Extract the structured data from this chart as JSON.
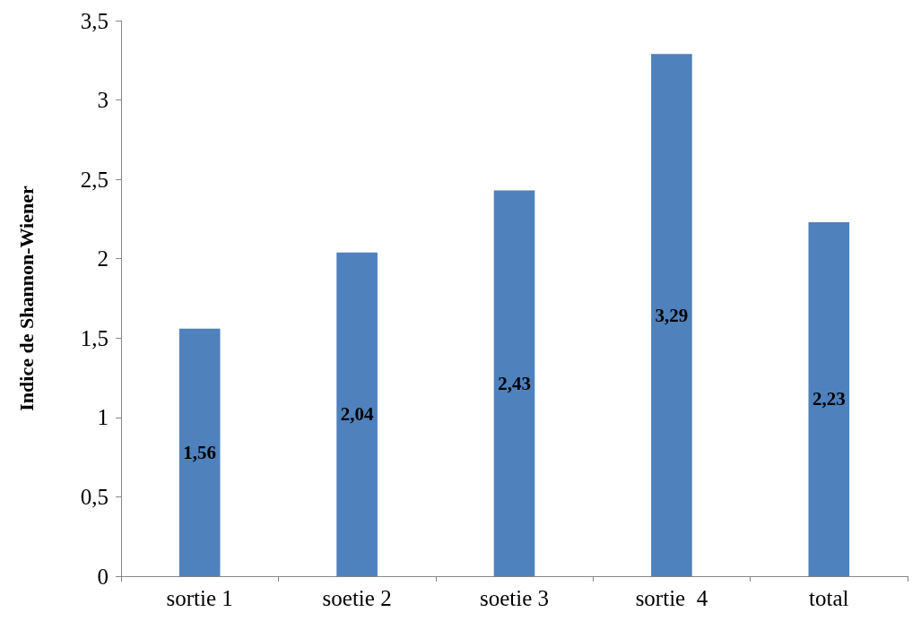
{
  "chart_data": {
    "type": "bar",
    "ylabel": "Indice de Shannon-Wiener",
    "categories": [
      "sortie 1",
      "soetie 2",
      "soetie 3",
      "sortie  4",
      "total"
    ],
    "values": [
      1.56,
      2.04,
      2.43,
      3.29,
      2.23
    ],
    "color": "#4f81bd",
    "value_labels": [
      "1,56",
      "2,04",
      "2,43",
      "3,29",
      "2,23"
    ],
    "ylim": [
      0,
      3.5
    ],
    "yticks": [
      0,
      {
        "value": 0.5,
        "label": "0,5"
      },
      1,
      {
        "value": 1.5,
        "label": "1,5"
      },
      2,
      {
        "value": 2.5,
        "label": "2,5"
      },
      3,
      {
        "value": 3.5,
        "label": "3,5"
      }
    ],
    "grid": false
  }
}
